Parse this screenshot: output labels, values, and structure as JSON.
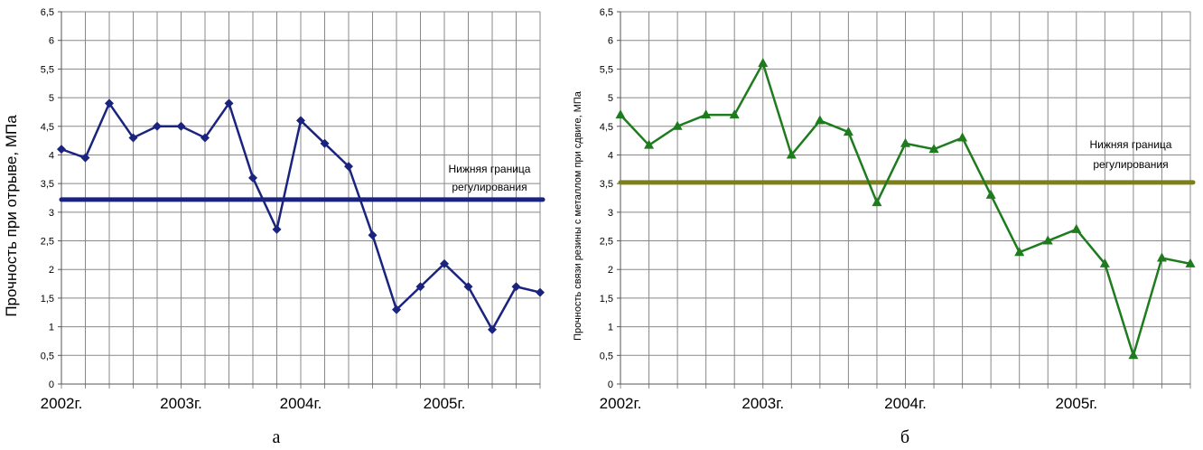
{
  "chart_data": [
    {
      "type": "line",
      "caption": "а",
      "ylabel": "Прочность при отрыве, МПа",
      "xlabel": "",
      "ylim": [
        0,
        6.5
      ],
      "yticks": [
        "0",
        "0,5",
        "1",
        "1,5",
        "2",
        "2,5",
        "3",
        "3,5",
        "4",
        "4,5",
        "5",
        "5,5",
        "6",
        "6,5"
      ],
      "year_labels": [
        {
          "index": 0,
          "label": "2002г."
        },
        {
          "index": 5,
          "label": "2003г."
        },
        {
          "index": 10,
          "label": "2004г."
        },
        {
          "index": 16,
          "label": "2005г."
        }
      ],
      "grid": true,
      "series": [
        {
          "name": "Прочность при отрыве",
          "color": "#1a237e",
          "marker": "diamond",
          "values": [
            4.1,
            3.95,
            4.9,
            4.3,
            4.5,
            4.5,
            4.3,
            4.9,
            3.6,
            2.7,
            4.6,
            4.2,
            3.8,
            2.6,
            1.3,
            1.7,
            2.1,
            1.7,
            0.95,
            1.7,
            1.6
          ]
        }
      ],
      "limit": {
        "value": 3.22,
        "color": "#1a237e",
        "label_line1": "Нижняя граница",
        "label_line2": "регулирования"
      }
    },
    {
      "type": "line",
      "caption": "б",
      "ylabel": "Прочность связи резины с металлом при сдвиге, МПа",
      "xlabel": "",
      "ylim": [
        0,
        6.5
      ],
      "yticks": [
        "0",
        "0,5",
        "1",
        "1,5",
        "2",
        "2,5",
        "3",
        "3,5",
        "4",
        "4,5",
        "5",
        "5,5",
        "6",
        "6,5"
      ],
      "year_labels": [
        {
          "index": 0,
          "label": "2002г."
        },
        {
          "index": 5,
          "label": "2003г."
        },
        {
          "index": 10,
          "label": "2004г."
        },
        {
          "index": 16,
          "label": "2005г."
        }
      ],
      "grid": true,
      "series": [
        {
          "name": "Прочность связи при сдвиге",
          "color": "#1e7b1e",
          "marker": "triangle",
          "values": [
            4.7,
            4.17,
            4.5,
            4.7,
            4.7,
            5.6,
            4.0,
            4.6,
            4.4,
            3.17,
            4.2,
            4.1,
            4.3,
            3.3,
            2.3,
            2.5,
            2.7,
            2.1,
            0.5,
            2.2,
            2.1
          ]
        }
      ],
      "limit": {
        "value": 3.52,
        "color": "#7f7f1a",
        "label_line1": "Нижняя граница",
        "label_line2": "регулирования"
      }
    }
  ]
}
